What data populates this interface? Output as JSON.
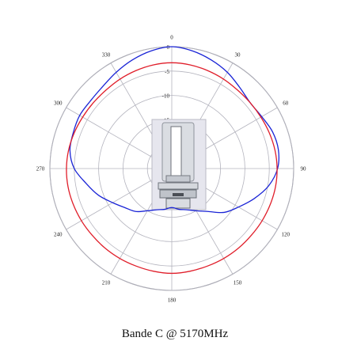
{
  "chart_data": {
    "type": "polar-line",
    "title": "Bande C @ 5170MHz",
    "angle_ticks": [
      "0",
      "30",
      "60",
      "90",
      "120",
      "150",
      "180",
      "210",
      "240",
      "270",
      "300",
      "330"
    ],
    "radial_ticks": [
      "0",
      "-5",
      "-10",
      "-15"
    ],
    "radial_range": [
      -25,
      0
    ],
    "angle_direction": "clockwise",
    "angle_zero": "top",
    "grid": true,
    "series": [
      {
        "color": "#1a24d6",
        "theta": [
          0,
          10,
          20,
          30,
          40,
          50,
          60,
          70,
          80,
          90,
          100,
          110,
          120,
          130,
          140,
          150,
          160,
          170,
          180,
          190,
          200,
          210,
          220,
          230,
          240,
          250,
          260,
          270,
          280,
          290,
          300,
          310,
          320,
          330,
          340,
          350
        ],
        "r": [
          0,
          -0.5,
          -1.3,
          -2.2,
          -3.3,
          -4.0,
          -3.7,
          -3.0,
          -2.8,
          -3.3,
          -4.8,
          -7.0,
          -9.2,
          -11.0,
          -13.5,
          -15.0,
          -16.0,
          -16.5,
          -17.0,
          -16.5,
          -16.0,
          -15.0,
          -13.5,
          -12.5,
          -11.0,
          -9.0,
          -7.2,
          -5.0,
          -3.8,
          -3.5,
          -3.2,
          -3.3,
          -3.0,
          -2.2,
          -1.3,
          -0.5
        ]
      },
      {
        "color": "#e01e2a",
        "theta": [
          0,
          10,
          20,
          30,
          40,
          50,
          60,
          70,
          80,
          90,
          100,
          110,
          120,
          130,
          140,
          150,
          160,
          170,
          180,
          190,
          200,
          210,
          220,
          230,
          240,
          250,
          260,
          270,
          280,
          290,
          300,
          310,
          320,
          330,
          340,
          350
        ],
        "r": [
          -3.3,
          -3.4,
          -3.6,
          -3.8,
          -4.0,
          -4.0,
          -3.9,
          -3.7,
          -3.5,
          -3.4,
          -3.4,
          -3.5,
          -3.6,
          -3.7,
          -3.7,
          -3.7,
          -3.7,
          -3.6,
          -3.5,
          -3.6,
          -3.7,
          -3.7,
          -3.7,
          -3.7,
          -3.6,
          -3.5,
          -3.4,
          -3.4,
          -3.5,
          -3.7,
          -3.9,
          -4.0,
          -4.0,
          -3.8,
          -3.6,
          -3.4
        ]
      }
    ]
  }
}
